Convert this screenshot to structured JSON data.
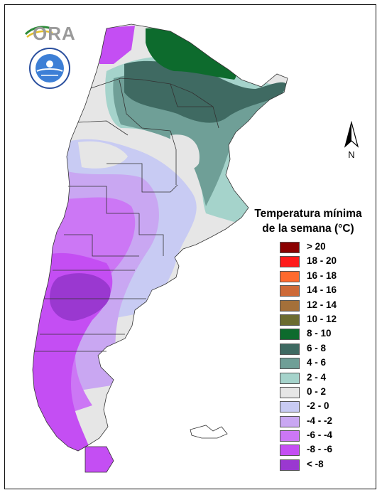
{
  "logo": {
    "text": "ORA"
  },
  "seal": {
    "ring_text": "SERVICIO METEOROLÓGICO NACIONAL · ARGENTINA"
  },
  "north_arrow": {
    "label": "N"
  },
  "legend": {
    "title_line1": "Temperatura mínima",
    "title_line2": "de la semana (°C)",
    "items": [
      {
        "label": "> 20",
        "color": "#8b0000"
      },
      {
        "label": "18 - 20",
        "color": "#ff1a1a"
      },
      {
        "label": "16 - 18",
        "color": "#ff6a2e"
      },
      {
        "label": "14 - 16",
        "color": "#cd6a38"
      },
      {
        "label": "12 - 14",
        "color": "#a4703a"
      },
      {
        "label": "10 - 12",
        "color": "#6b6b30"
      },
      {
        "label": "8 - 10",
        "color": "#0d6b2d"
      },
      {
        "label": "6 - 8",
        "color": "#3f6a62"
      },
      {
        "label": "4 - 6",
        "color": "#6f9f97"
      },
      {
        "label": "2 - 4",
        "color": "#a5d3cb"
      },
      {
        "label": "0 - 2",
        "color": "#e6e6e6"
      },
      {
        "label": "-2 - 0",
        "color": "#c8cbf3"
      },
      {
        "label": "-4 - -2",
        "color": "#c9a7f2"
      },
      {
        "label": "-6 - -4",
        "color": "#cc77f5"
      },
      {
        "label": "-8 - -6",
        "color": "#c44ef3"
      },
      {
        "label": "< -8",
        "color": "#9a38d0"
      }
    ]
  }
}
